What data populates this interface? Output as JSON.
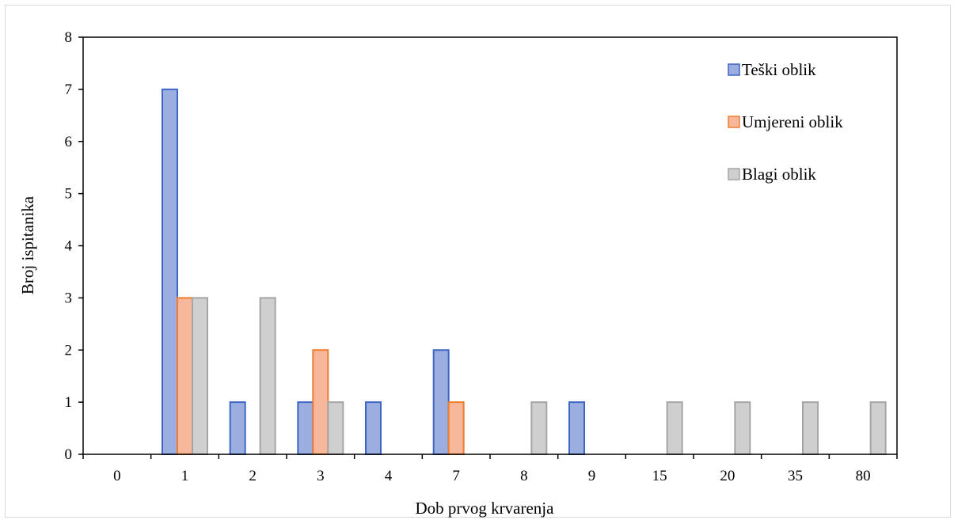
{
  "chart_data": {
    "type": "bar",
    "title": "",
    "xlabel": "Dob prvog krvarenja",
    "ylabel": "Broj ispitanika",
    "categories": [
      "0",
      "1",
      "2",
      "3",
      "4",
      "7",
      "8",
      "9",
      "15",
      "20",
      "35",
      "80"
    ],
    "series": [
      {
        "name": "Teški oblik",
        "values": [
          0,
          7,
          1,
          1,
          1,
          2,
          0,
          1,
          0,
          0,
          0,
          0
        ]
      },
      {
        "name": "Umjereni oblik",
        "values": [
          0,
          3,
          0,
          2,
          0,
          1,
          0,
          0,
          0,
          0,
          0,
          0
        ]
      },
      {
        "name": "Blagi oblik",
        "values": [
          0,
          3,
          3,
          1,
          0,
          0,
          1,
          0,
          1,
          1,
          1,
          1
        ]
      }
    ],
    "ylim": [
      0,
      8
    ],
    "yticks": [
      "0",
      "1",
      "2",
      "3",
      "4",
      "5",
      "6",
      "7",
      "8"
    ],
    "grid": false,
    "legend_position": "top-right",
    "colors": {
      "series_fill": [
        "#9aafe0",
        "#f6b79a",
        "#cfcfcf"
      ],
      "series_stroke": [
        "#3f66c4",
        "#ed7d31",
        "#a5a5a5"
      ],
      "axis": "#000000"
    }
  }
}
